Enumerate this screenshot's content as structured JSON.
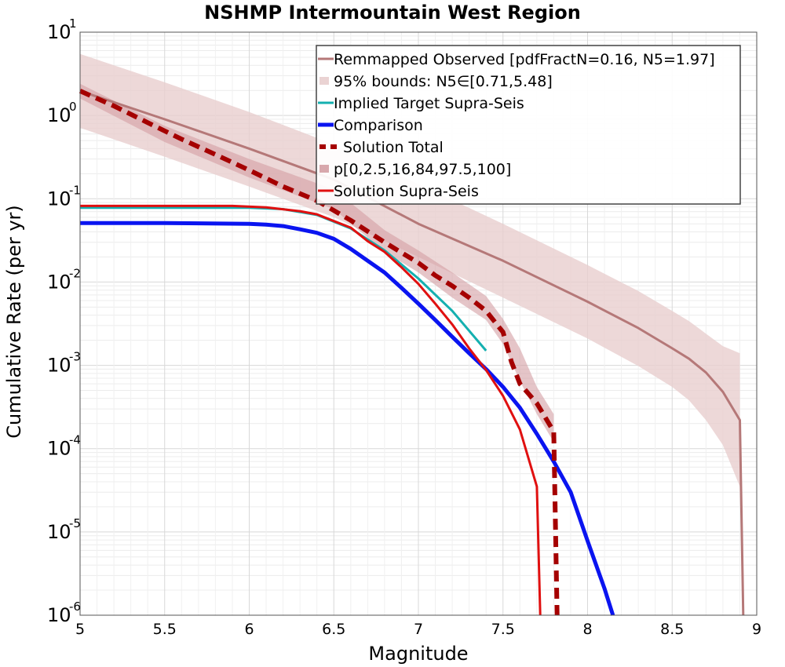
{
  "chart_data": {
    "type": "line",
    "title": "NSHMP Intermountain West Region",
    "xlabel": "Magnitude",
    "ylabel": "Cumulative Rate (per yr)",
    "xlim": [
      5,
      9
    ],
    "ylim": [
      1e-06,
      10
    ],
    "yscale": "log",
    "grid": true,
    "legend_position": "top-right",
    "xticks": [
      "5",
      "5.5",
      "6",
      "6.5",
      "7",
      "7.5",
      "8",
      "8.5",
      "9"
    ],
    "yticks": [
      {
        "base": "10",
        "exp": "-6",
        "value": 1e-06
      },
      {
        "base": "10",
        "exp": "-5",
        "value": 1e-05
      },
      {
        "base": "10",
        "exp": "-4",
        "value": 0.0001
      },
      {
        "base": "10",
        "exp": "-3",
        "value": 0.001
      },
      {
        "base": "10",
        "exp": "-2",
        "value": 0.01
      },
      {
        "base": "10",
        "exp": "-1",
        "value": 0.1
      },
      {
        "base": "10",
        "exp": "0",
        "value": 1
      },
      {
        "base": "10",
        "exp": "1",
        "value": 10
      }
    ],
    "series": [
      {
        "name": "Remmapped Observed [pdfFractN=0.16, N5=1.97]",
        "kind": "line",
        "color": "#b57878",
        "width": 3,
        "x": [
          5.0,
          5.5,
          6.0,
          6.5,
          7.0,
          7.5,
          8.0,
          8.3,
          8.5,
          8.6,
          8.7,
          8.8,
          8.9,
          8.92
        ],
        "y": [
          1.97,
          0.9,
          0.4,
          0.17,
          0.05,
          0.018,
          0.0058,
          0.0028,
          0.0016,
          0.0012,
          0.00082,
          0.00048,
          0.00022,
          1e-06
        ]
      },
      {
        "name": "95% bounds: N5∈[0.71,5.48]",
        "kind": "band",
        "color": "#e8cece",
        "opacity": 0.8,
        "x": [
          5.0,
          5.5,
          6.0,
          6.5,
          7.0,
          7.5,
          8.0,
          8.3,
          8.5,
          8.6,
          8.7,
          8.8,
          8.9
        ],
        "upper": [
          5.48,
          2.5,
          1.1,
          0.45,
          0.15,
          0.05,
          0.016,
          0.0078,
          0.0045,
          0.0034,
          0.0024,
          0.0017,
          0.0014
        ],
        "lower": [
          0.71,
          0.32,
          0.14,
          0.06,
          0.02,
          0.0065,
          0.0021,
          0.00098,
          0.00055,
          0.00038,
          0.00022,
          0.00011,
          3.5e-05
        ]
      },
      {
        "name": "Implied Target Supra-Seis",
        "kind": "line",
        "color": "#14b0b0",
        "width": 3,
        "x": [
          5.0,
          5.5,
          6.0,
          6.2,
          6.4,
          6.6,
          6.8,
          7.0,
          7.2,
          7.4
        ],
        "y": [
          0.078,
          0.078,
          0.078,
          0.075,
          0.064,
          0.044,
          0.024,
          0.011,
          0.0045,
          0.0015
        ]
      },
      {
        "name": "Comparison",
        "kind": "line",
        "color": "#0a14f0",
        "width": 5,
        "x": [
          5.0,
          5.5,
          6.0,
          6.1,
          6.2,
          6.3,
          6.4,
          6.5,
          6.6,
          6.7,
          6.8,
          6.9,
          7.0,
          7.1,
          7.2,
          7.3,
          7.4,
          7.5,
          7.6,
          7.7,
          7.8,
          7.9,
          8.0,
          8.1,
          8.15
        ],
        "y": [
          0.051,
          0.051,
          0.05,
          0.049,
          0.047,
          0.043,
          0.039,
          0.033,
          0.025,
          0.018,
          0.013,
          0.0085,
          0.0055,
          0.0035,
          0.0022,
          0.0014,
          0.0009,
          0.00055,
          0.00031,
          0.00015,
          7e-05,
          3e-05,
          7.8e-06,
          2.1e-06,
          8e-07
        ]
      },
      {
        "name": "Solution Total",
        "kind": "line",
        "color": "#a50000",
        "width": 6,
        "dash": "14,8",
        "x": [
          5.0,
          5.2,
          5.4,
          5.6,
          5.8,
          6.0,
          6.2,
          6.4,
          6.6,
          6.8,
          7.0,
          7.1,
          7.2,
          7.3,
          7.4,
          7.5,
          7.55,
          7.6,
          7.7,
          7.8,
          7.82
        ],
        "y": [
          1.97,
          1.3,
          0.82,
          0.52,
          0.34,
          0.22,
          0.14,
          0.095,
          0.055,
          0.03,
          0.017,
          0.012,
          0.009,
          0.0065,
          0.0045,
          0.0025,
          0.0011,
          0.0006,
          0.00035,
          0.00016,
          1e-06
        ]
      },
      {
        "name": "p[0,2.5,16,84,97.5,100]",
        "kind": "band",
        "color": "#d49ea4",
        "opacity": 0.6,
        "x": [
          5.0,
          5.5,
          6.0,
          6.5,
          6.8,
          7.0,
          7.2,
          7.4,
          7.5,
          7.6,
          7.7,
          7.8
        ],
        "upper": [
          2.4,
          0.75,
          0.3,
          0.13,
          0.042,
          0.024,
          0.013,
          0.0068,
          0.0036,
          0.0016,
          0.00055,
          0.00026
        ],
        "lower": [
          1.6,
          0.48,
          0.18,
          0.075,
          0.023,
          0.013,
          0.0065,
          0.0035,
          0.0018,
          0.00065,
          0.00026,
          0.00012
        ]
      },
      {
        "name": "Solution Supra-Seis",
        "kind": "line",
        "color": "#e01010",
        "width": 3,
        "x": [
          5.0,
          5.5,
          5.9,
          6.1,
          6.3,
          6.4,
          6.5,
          6.6,
          6.7,
          6.8,
          6.9,
          7.0,
          7.1,
          7.2,
          7.3,
          7.4,
          7.5,
          7.6,
          7.7,
          7.72
        ],
        "y": [
          0.082,
          0.082,
          0.082,
          0.079,
          0.071,
          0.065,
          0.054,
          0.045,
          0.031,
          0.023,
          0.015,
          0.0095,
          0.0055,
          0.0031,
          0.0016,
          0.00088,
          0.00043,
          0.00017,
          3.5e-05,
          1e-06
        ]
      }
    ]
  }
}
